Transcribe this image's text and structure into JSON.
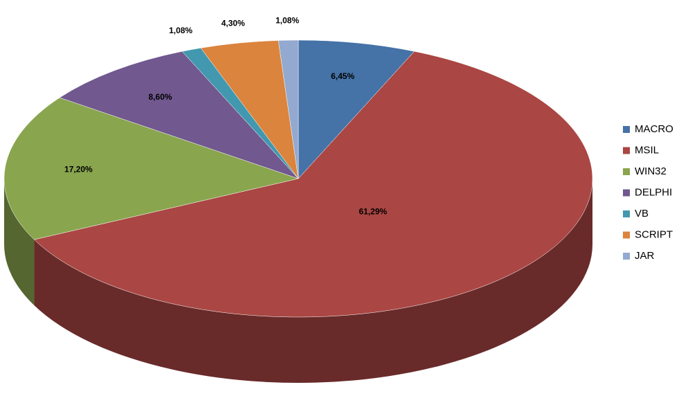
{
  "chart_data": {
    "type": "pie",
    "categories": [
      "MACRO",
      "MSIL",
      "WIN32",
      "DELPHI",
      "VB",
      "SCRIPT",
      "JAR"
    ],
    "values": [
      6.45,
      61.29,
      17.2,
      8.6,
      1.08,
      4.3,
      1.08
    ],
    "value_labels": [
      "6,45%",
      "61,29%",
      "17,20%",
      "8,60%",
      "1,08%",
      "4,30%",
      "1,08%"
    ],
    "colors": [
      "#4572a7",
      "#aa4643",
      "#89a54e",
      "#71588f",
      "#4198af",
      "#db843d",
      "#93a9cf"
    ],
    "legend": "right"
  }
}
